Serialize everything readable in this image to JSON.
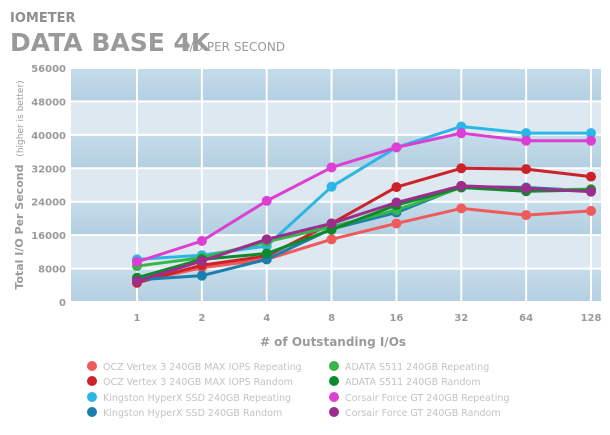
{
  "header": {
    "brand": "IOMETER",
    "title_main": "DATA BASE 4K",
    "title_sub": "I/O PER SECOND"
  },
  "chart_data": {
    "type": "line",
    "categories": [
      "1",
      "2",
      "4",
      "8",
      "16",
      "32",
      "64",
      "128"
    ],
    "xlabel": "# of Outstanding I/Os",
    "ylabel": "Total I/O Per Second",
    "ylabel_note": "(higher is better)",
    "ylim": [
      0,
      56000
    ],
    "yticks": [
      0,
      8000,
      16000,
      24000,
      32000,
      40000,
      48000,
      56000
    ],
    "ytick_labels": [
      "0",
      "8000",
      "16000",
      "24000",
      "32000",
      "40000",
      "48000",
      "56000"
    ],
    "grid": true,
    "legend_position": "bottom",
    "series": [
      {
        "name": "OCZ Vertex 3 240GB MAX IOPS Repeating",
        "color": "#f05a5a",
        "values": [
          4800,
          8200,
          10200,
          15000,
          18800,
          22400,
          20800,
          21800
        ]
      },
      {
        "name": "OCZ Vertex 3 240GB MAX IOPS Random",
        "color": "#cc2229",
        "values": [
          4600,
          8800,
          11000,
          18800,
          27500,
          32000,
          31800,
          30000
        ]
      },
      {
        "name": "Kingston HyperX SSD 240GB Repeating",
        "color": "#2bb6e6",
        "values": [
          10200,
          11200,
          13400,
          27600,
          37000,
          42000,
          40400,
          40400
        ]
      },
      {
        "name": "Kingston HyperX SSD 240GB Random",
        "color": "#1b7fad",
        "values": [
          5300,
          6300,
          10200,
          17500,
          21400,
          27600,
          27400,
          26600
        ]
      },
      {
        "name": "ADATA S511 240GB Repeating",
        "color": "#36b549",
        "values": [
          8600,
          10600,
          14400,
          18000,
          22000,
          27400,
          26800,
          27000
        ]
      },
      {
        "name": "ADATA S511 240GB Random",
        "color": "#0e8a2e",
        "values": [
          5800,
          10200,
          11600,
          17300,
          23200,
          27400,
          26500,
          26800
        ]
      },
      {
        "name": "Corsair Force GT 240GB Repeating",
        "color": "#dd3fd3",
        "values": [
          9600,
          14600,
          24200,
          32200,
          37000,
          40400,
          38600,
          38600
        ]
      },
      {
        "name": "Corsair Force GT 240GB Random",
        "color": "#9d2d8c",
        "values": [
          5000,
          9800,
          15000,
          18800,
          23800,
          27800,
          27200,
          26400
        ]
      }
    ]
  }
}
